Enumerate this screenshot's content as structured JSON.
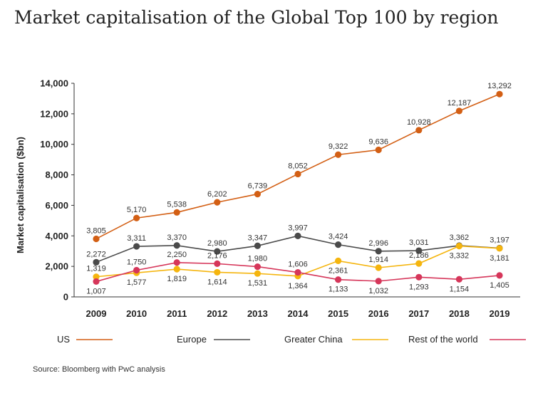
{
  "chart_data": {
    "type": "line",
    "title": "Market capitalisation of the Global Top 100 by region",
    "ylabel": "Market capitalisation ($bn)",
    "xlabel": "",
    "x": [
      "2009",
      "2010",
      "2011",
      "2012",
      "2013",
      "2014",
      "2015",
      "2016",
      "2017",
      "2018",
      "2019"
    ],
    "ylim": [
      0,
      14000
    ],
    "yticks": [
      "0",
      "2,000",
      "4,000",
      "6,000",
      "8,000",
      "10,000",
      "12,000",
      "14,000"
    ],
    "ytick_values": [
      0,
      2000,
      4000,
      6000,
      8000,
      10000,
      12000,
      14000
    ],
    "grid": false,
    "legend_position": "bottom",
    "series": [
      {
        "name": "US",
        "color": "#d35f14",
        "values": [
          3805,
          5170,
          5538,
          6202,
          6739,
          8052,
          9322,
          9636,
          10928,
          12187,
          13292
        ],
        "labels": [
          "3,805",
          "5,170",
          "5,538",
          "6,202",
          "6,739",
          "8,052",
          "9,322",
          "9,636",
          "10,928",
          "12,187",
          "13,292"
        ],
        "label_pos": [
          "above",
          "above",
          "above",
          "above",
          "above",
          "above",
          "above",
          "above",
          "above",
          "above",
          "above"
        ]
      },
      {
        "name": "Europe",
        "color": "#4a4a4a",
        "values": [
          2272,
          3311,
          3370,
          2980,
          3347,
          3997,
          3424,
          2996,
          3031,
          3362,
          3197
        ],
        "labels": [
          "2,272",
          "3,311",
          "3,370",
          "2,980",
          "3,347",
          "3,997",
          "3,424",
          "2,996",
          "3,031",
          "3,362",
          "3,197"
        ],
        "label_pos": [
          "above",
          "above",
          "above",
          "above",
          "above",
          "above",
          "above",
          "above",
          "above",
          "above",
          "above"
        ]
      },
      {
        "name": "Greater China",
        "color": "#f5b50e",
        "values": [
          1319,
          1577,
          1819,
          1614,
          1531,
          1364,
          2361,
          1914,
          2186,
          3332,
          3181
        ],
        "labels": [
          "1,319",
          "1,577",
          "1,819",
          "1,614",
          "1,531",
          "1,364",
          "2,361",
          "1,914",
          "2,186",
          "3,332",
          "3,181"
        ],
        "label_pos": [
          "above",
          "below",
          "below",
          "below",
          "below",
          "below",
          "below",
          "above",
          "above",
          "below",
          "below"
        ]
      },
      {
        "name": "Rest of the world",
        "color": "#d6365a",
        "values": [
          1007,
          1750,
          2250,
          2176,
          1980,
          1606,
          1133,
          1032,
          1293,
          1154,
          1405
        ],
        "labels": [
          "1,007",
          "1,750",
          "2,250",
          "2,176",
          "1,980",
          "1,606",
          "1,133",
          "1,032",
          "1,293",
          "1,154",
          "1,405"
        ],
        "label_pos": [
          "below",
          "above",
          "above",
          "above",
          "above",
          "above",
          "below",
          "below",
          "below",
          "below",
          "below"
        ]
      }
    ]
  },
  "source_note": "Source: Bloomberg with PwC analysis"
}
